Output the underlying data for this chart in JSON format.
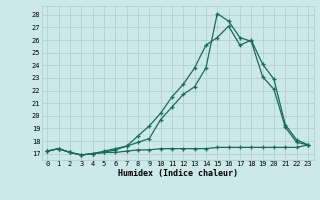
{
  "xlabel": "Humidex (Indice chaleur)",
  "background_color": "#cde8e8",
  "grid_color": "#aacccc",
  "line_color": "#1a6b5a",
  "xlim": [
    -0.5,
    23.5
  ],
  "ylim": [
    16.5,
    28.7
  ],
  "xticks": [
    0,
    1,
    2,
    3,
    4,
    5,
    6,
    7,
    8,
    9,
    10,
    11,
    12,
    13,
    14,
    15,
    16,
    17,
    18,
    19,
    20,
    21,
    22,
    23
  ],
  "yticks": [
    17,
    18,
    19,
    20,
    21,
    22,
    23,
    24,
    25,
    26,
    27,
    28
  ],
  "line1_x": [
    0,
    1,
    2,
    3,
    4,
    5,
    6,
    7,
    8,
    9,
    10,
    11,
    12,
    13,
    14,
    15,
    16,
    17,
    18,
    19,
    20,
    21,
    22,
    23
  ],
  "line1_y": [
    17.2,
    17.4,
    17.1,
    16.9,
    17.0,
    17.1,
    17.1,
    17.2,
    17.3,
    17.3,
    17.4,
    17.4,
    17.4,
    17.4,
    17.4,
    17.5,
    17.5,
    17.5,
    17.5,
    17.5,
    17.5,
    17.5,
    17.5,
    17.7
  ],
  "line2_x": [
    0,
    1,
    2,
    3,
    4,
    5,
    6,
    7,
    8,
    9,
    10,
    11,
    12,
    13,
    14,
    15,
    16,
    17,
    18,
    19,
    20,
    21,
    22,
    23
  ],
  "line2_y": [
    17.2,
    17.4,
    17.1,
    16.9,
    17.0,
    17.2,
    17.4,
    17.6,
    18.4,
    19.2,
    20.2,
    21.5,
    22.5,
    23.8,
    25.6,
    26.2,
    27.1,
    25.6,
    26.0,
    24.1,
    22.9,
    19.3,
    18.1,
    17.7
  ],
  "line3_x": [
    0,
    1,
    2,
    3,
    4,
    5,
    6,
    7,
    8,
    9,
    10,
    11,
    12,
    13,
    14,
    15,
    16,
    17,
    18,
    19,
    20,
    21,
    22,
    23
  ],
  "line3_y": [
    17.2,
    17.4,
    17.1,
    16.9,
    17.0,
    17.1,
    17.3,
    17.6,
    17.9,
    18.2,
    19.7,
    20.7,
    21.7,
    22.3,
    23.8,
    28.1,
    27.5,
    26.2,
    25.9,
    23.1,
    22.1,
    19.1,
    17.9,
    17.7
  ]
}
